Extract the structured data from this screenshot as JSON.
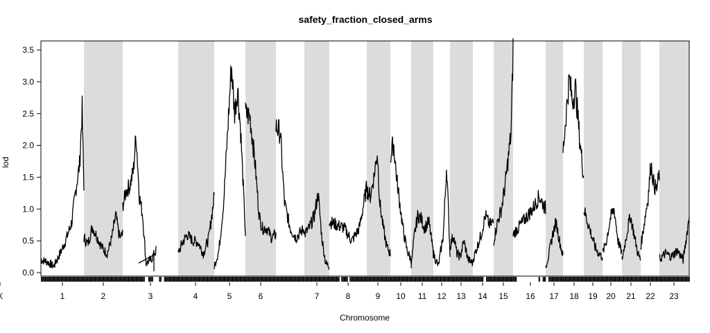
{
  "chart_data": {
    "type": "line",
    "title": "safety_fraction_closed_arms",
    "xlabel": "Chromosome",
    "ylabel": "lod",
    "ylim": [
      0,
      3.6
    ],
    "yticks": [
      "0.0",
      "0.5",
      "1.0",
      "1.5",
      "2.0",
      "2.5",
      "3.0",
      "3.5"
    ],
    "grid": false,
    "legend": "none",
    "colors": {
      "line": "#000000",
      "band": "#dcdcdc",
      "rug": "#000000"
    },
    "chromosomes": [
      {
        "name": "1",
        "peaks": [
          [
            0.0,
            0.2
          ],
          [
            0.12,
            0.18
          ],
          [
            0.3,
            0.1
          ],
          [
            0.48,
            0.35
          ],
          [
            0.6,
            0.55
          ],
          [
            0.72,
            0.8
          ],
          [
            0.82,
            1.35
          ],
          [
            0.9,
            1.7
          ],
          [
            0.96,
            2.58
          ],
          [
            1.0,
            1.3
          ]
        ]
      },
      {
        "name": "2",
        "peaks": [
          [
            0.0,
            0.55
          ],
          [
            0.1,
            0.45
          ],
          [
            0.22,
            0.72
          ],
          [
            0.35,
            0.55
          ],
          [
            0.48,
            0.38
          ],
          [
            0.6,
            0.3
          ],
          [
            0.72,
            0.55
          ],
          [
            0.82,
            0.9
          ],
          [
            0.92,
            0.55
          ],
          [
            1.0,
            0.6
          ]
        ]
      },
      {
        "name": "3",
        "peaks": [
          [
            0.0,
            1.05
          ],
          [
            0.1,
            1.28
          ],
          [
            0.22,
            1.38
          ],
          [
            0.32,
            1.6
          ],
          [
            0.4,
            2.18
          ],
          [
            0.5,
            1.2
          ],
          [
            0.6,
            0.9
          ],
          [
            0.7,
            0.15
          ],
          [
            0.85,
            0.2
          ],
          [
            1.0,
            0.35
          ]
        ]
      },
      {
        "name": "4",
        "peaks": [
          [
            0.0,
            0.3
          ],
          [
            0.1,
            0.45
          ],
          [
            0.25,
            0.6
          ],
          [
            0.4,
            0.5
          ],
          [
            0.55,
            0.48
          ],
          [
            0.7,
            0.3
          ],
          [
            0.85,
            0.55
          ],
          [
            1.0,
            1.2
          ]
        ]
      },
      {
        "name": "5",
        "peaks": [
          [
            0.0,
            0.1
          ],
          [
            0.15,
            0.35
          ],
          [
            0.3,
            1.1
          ],
          [
            0.45,
            2.4
          ],
          [
            0.55,
            3.27
          ],
          [
            0.65,
            2.5
          ],
          [
            0.75,
            2.9
          ],
          [
            0.85,
            2.2
          ],
          [
            1.0,
            0.6
          ]
        ]
      },
      {
        "name": "6",
        "peaks": [
          [
            0.0,
            2.5
          ],
          [
            0.15,
            2.45
          ],
          [
            0.3,
            1.8
          ],
          [
            0.45,
            0.9
          ],
          [
            0.55,
            0.7
          ],
          [
            0.7,
            0.7
          ],
          [
            0.85,
            0.55
          ],
          [
            1.0,
            0.6
          ]
        ]
      },
      {
        "name": "7",
        "peaks": [
          [
            0.0,
            2.3
          ],
          [
            0.15,
            2.2
          ],
          [
            0.3,
            1.1
          ],
          [
            0.5,
            0.7
          ],
          [
            0.7,
            0.55
          ],
          [
            1.0,
            0.7
          ]
        ]
      },
      {
        "name": "8",
        "peaks": [
          [
            0.0,
            0.6
          ],
          [
            0.2,
            0.7
          ],
          [
            0.4,
            0.9
          ],
          [
            0.55,
            1.25
          ],
          [
            0.7,
            0.55
          ],
          [
            0.85,
            0.15
          ],
          [
            1.0,
            0.1
          ]
        ]
      },
      {
        "name": "9",
        "peaks": [
          [
            0.0,
            0.8
          ],
          [
            0.2,
            0.75
          ],
          [
            0.4,
            0.7
          ],
          [
            0.6,
            0.5
          ],
          [
            0.8,
            0.7
          ],
          [
            1.0,
            1.35
          ]
        ]
      },
      {
        "name": "10",
        "peaks": [
          [
            0.0,
            1.3
          ],
          [
            0.15,
            1.2
          ],
          [
            0.3,
            1.5
          ],
          [
            0.45,
            1.9
          ],
          [
            0.55,
            1.1
          ],
          [
            0.7,
            0.7
          ],
          [
            0.85,
            0.4
          ],
          [
            1.0,
            0.3
          ]
        ]
      },
      {
        "name": "11",
        "peaks": [
          [
            0.0,
            1.8
          ],
          [
            0.15,
            2.05
          ],
          [
            0.3,
            1.5
          ],
          [
            0.45,
            1.1
          ],
          [
            0.6,
            0.7
          ],
          [
            0.8,
            0.35
          ],
          [
            1.0,
            0.2
          ]
        ]
      },
      {
        "name": "12",
        "peaks": [
          [
            0.0,
            0.1
          ],
          [
            0.15,
            0.6
          ],
          [
            0.3,
            0.9
          ],
          [
            0.45,
            0.85
          ],
          [
            0.6,
            0.7
          ],
          [
            0.8,
            0.8
          ],
          [
            1.0,
            0.3
          ]
        ]
      },
      {
        "name": "13",
        "peaks": [
          [
            0.0,
            0.3
          ],
          [
            0.3,
            0.1
          ],
          [
            0.6,
            0.6
          ],
          [
            0.8,
            1.7
          ],
          [
            1.0,
            0.3
          ]
        ]
      },
      {
        "name": "14",
        "peaks": [
          [
            0.0,
            0.4
          ],
          [
            0.15,
            0.6
          ],
          [
            0.3,
            0.3
          ],
          [
            0.45,
            0.25
          ],
          [
            0.6,
            0.5
          ],
          [
            0.8,
            0.2
          ],
          [
            1.0,
            0.15
          ]
        ]
      },
      {
        "name": "15",
        "peaks": [
          [
            0.0,
            0.2
          ],
          [
            0.2,
            0.4
          ],
          [
            0.4,
            0.6
          ],
          [
            0.6,
            0.9
          ],
          [
            0.8,
            0.75
          ],
          [
            1.0,
            0.8
          ]
        ]
      },
      {
        "name": "16",
        "peaks": [
          [
            0.0,
            0.5
          ],
          [
            0.2,
            0.8
          ],
          [
            0.4,
            1.0
          ],
          [
            0.6,
            1.4
          ],
          [
            0.75,
            1.8
          ],
          [
            0.9,
            2.2
          ],
          [
            1.0,
            3.52
          ]
        ]
      },
      {
        "name": "17",
        "peaks": [
          [
            0.0,
            0.6
          ],
          [
            0.3,
            0.8
          ],
          [
            0.6,
            1.0
          ],
          [
            0.8,
            1.2
          ],
          [
            1.0,
            1.0
          ]
        ]
      },
      {
        "name": "18",
        "peaks": [
          [
            0.0,
            0.1
          ],
          [
            0.2,
            0.3
          ],
          [
            0.4,
            0.6
          ],
          [
            0.6,
            0.8
          ],
          [
            0.8,
            0.5
          ],
          [
            1.0,
            0.25
          ]
        ]
      },
      {
        "name": "19",
        "peaks": [
          [
            0.0,
            1.9
          ],
          [
            0.15,
            2.5
          ],
          [
            0.3,
            3.05
          ],
          [
            0.45,
            2.7
          ],
          [
            0.6,
            2.9
          ],
          [
            0.8,
            2.1
          ],
          [
            1.0,
            1.5
          ]
        ]
      },
      {
        "name": "20",
        "peaks": [
          [
            0.0,
            1.0
          ],
          [
            0.2,
            0.8
          ],
          [
            0.4,
            0.6
          ],
          [
            0.6,
            0.4
          ],
          [
            0.8,
            0.3
          ],
          [
            1.0,
            0.25
          ]
        ]
      },
      {
        "name": "21",
        "peaks": [
          [
            0.0,
            0.3
          ],
          [
            0.2,
            0.5
          ],
          [
            0.4,
            0.85
          ],
          [
            0.6,
            1.0
          ],
          [
            0.8,
            0.5
          ],
          [
            1.0,
            0.3
          ]
        ]
      },
      {
        "name": "22",
        "peaks": [
          [
            0.0,
            0.2
          ],
          [
            0.25,
            0.6
          ],
          [
            0.45,
            0.9
          ],
          [
            0.65,
            0.6
          ],
          [
            0.85,
            0.3
          ],
          [
            1.0,
            0.2
          ]
        ]
      },
      {
        "name": "23",
        "peaks": [
          [
            0.0,
            0.4
          ],
          [
            0.2,
            0.8
          ],
          [
            0.4,
            1.2
          ],
          [
            0.55,
            1.72
          ],
          [
            0.7,
            1.4
          ],
          [
            0.85,
            1.3
          ],
          [
            1.0,
            1.55
          ]
        ]
      },
      {
        "name": "X",
        "peaks": [
          [
            0.0,
            0.2
          ],
          [
            0.2,
            0.3
          ],
          [
            0.4,
            0.25
          ],
          [
            0.6,
            0.35
          ],
          [
            0.8,
            0.2
          ],
          [
            1.0,
            0.88
          ]
        ]
      }
    ]
  }
}
